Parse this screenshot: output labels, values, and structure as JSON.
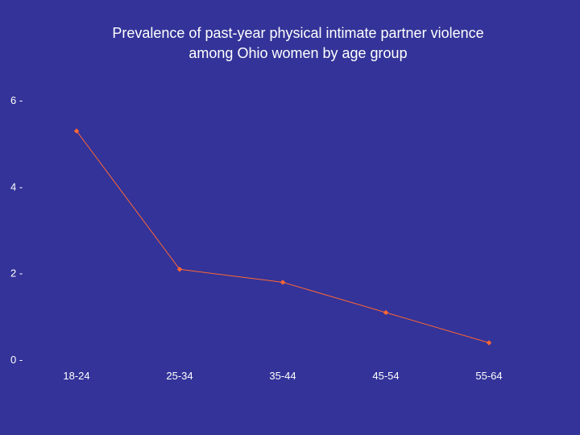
{
  "slide": {
    "background_color": "#333399",
    "title_line1": "Prevalence of past-year physical intimate partner violence",
    "title_line2": "among Ohio women by age group"
  },
  "chart_data": {
    "type": "line",
    "title": "Prevalence of past-year physical intimate partner violence among Ohio women by age group",
    "xlabel": "",
    "ylabel": "",
    "categories": [
      "18-24",
      "25-34",
      "35-44",
      "45-54",
      "55-64"
    ],
    "series": [
      {
        "values": [
          5.3,
          2.1,
          1.8,
          1.1,
          0.4
        ],
        "color": "#ff6633"
      }
    ],
    "ylim": [
      0,
      6
    ],
    "yticks": [
      0,
      2,
      4,
      6
    ],
    "grid": false,
    "legend": "none",
    "marker": "diamond"
  }
}
